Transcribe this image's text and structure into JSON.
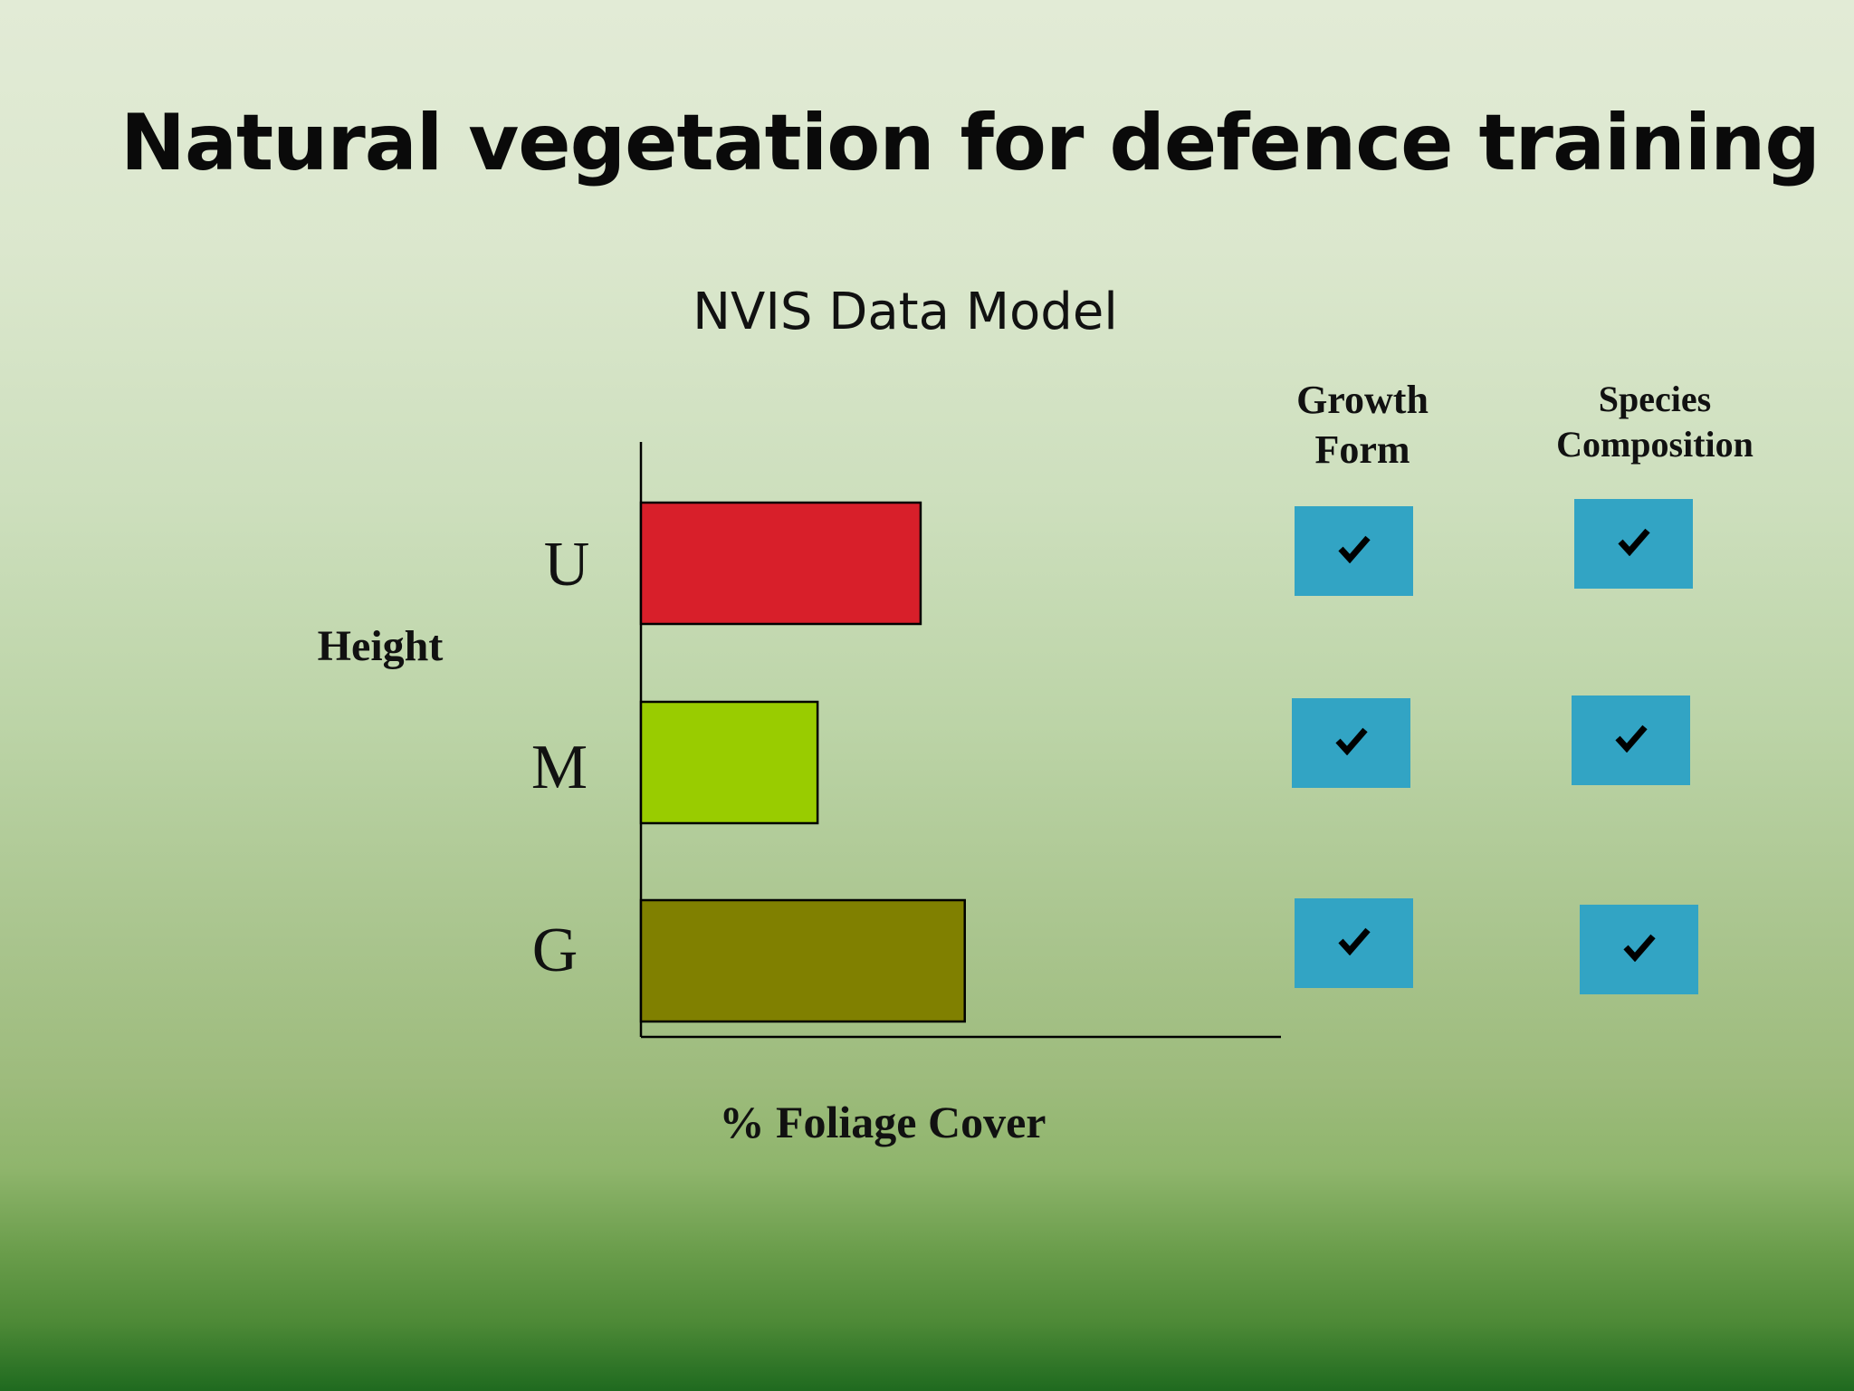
{
  "slide": {
    "title": "Natural vegetation for defence training",
    "subtitle": "NVIS Data Model"
  },
  "columns": {
    "growth_form": "Growth Form",
    "species_composition": "Species Composition"
  },
  "colors": {
    "U": "#d81f2a",
    "M": "#99cc00",
    "G": "#808000",
    "check_box": "#32a4c4"
  },
  "icons": {
    "check": "check-icon"
  },
  "checks": [
    {
      "category": "U",
      "growth_form": true,
      "species_composition": true
    },
    {
      "category": "M",
      "growth_form": true,
      "species_composition": true
    },
    {
      "category": "G",
      "growth_form": true,
      "species_composition": true
    }
  ],
  "chart_data": {
    "type": "bar",
    "orientation": "horizontal",
    "categories": [
      "U",
      "M",
      "G"
    ],
    "values": [
      57,
      36,
      66
    ],
    "xlabel": "% Foliage Cover",
    "ylabel": "Height",
    "xlim": [
      0,
      100
    ],
    "grid": false,
    "value_labels_shown": false
  }
}
